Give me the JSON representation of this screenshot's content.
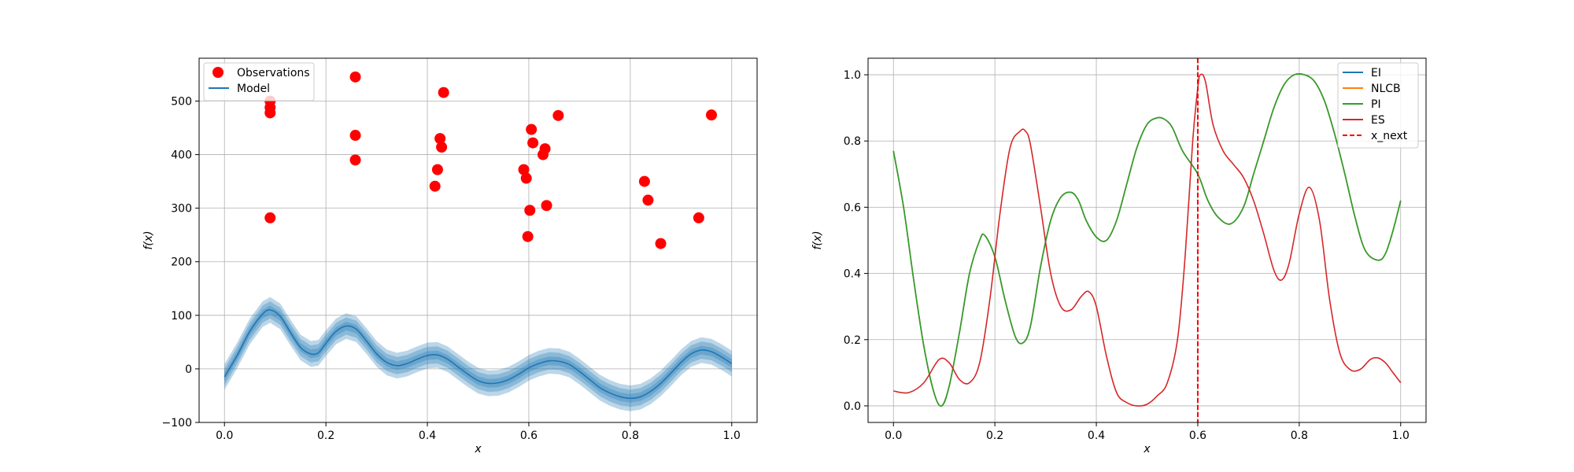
{
  "chart_data": [
    {
      "type": "scatter",
      "xlabel": "x",
      "ylabel": "f(x)",
      "xlim": [
        -0.05,
        1.05
      ],
      "ylim": [
        -100,
        580
      ],
      "xticks": [
        0.0,
        0.2,
        0.4,
        0.6,
        0.8,
        1.0
      ],
      "xtick_labels": [
        "0.0",
        "0.2",
        "0.4",
        "0.6",
        "0.8",
        "1.0"
      ],
      "yticks": [
        -100,
        0,
        100,
        200,
        300,
        400,
        500
      ],
      "ytick_labels": [
        "−100",
        "0",
        "100",
        "200",
        "300",
        "400",
        "500"
      ],
      "grid": true,
      "legend": "top-left",
      "series": [
        {
          "name": "Observations",
          "kind": "points",
          "color": "#ff0000",
          "x": [
            0.09,
            0.09,
            0.09,
            0.09,
            0.258,
            0.258,
            0.258,
            0.415,
            0.42,
            0.425,
            0.428,
            0.432,
            0.59,
            0.595,
            0.598,
            0.602,
            0.605,
            0.608,
            0.628,
            0.632,
            0.635,
            0.658,
            0.828,
            0.835,
            0.86,
            0.935,
            0.96
          ],
          "y": [
            500,
            488,
            478,
            282,
            545,
            436,
            390,
            341,
            372,
            430,
            414,
            516,
            372,
            356,
            247,
            296,
            447,
            422,
            400,
            411,
            305,
            473,
            350,
            315,
            234,
            282,
            474
          ]
        },
        {
          "name": "Model",
          "kind": "line",
          "color": "#1f77b4",
          "x": [
            0.0,
            0.025,
            0.05,
            0.075,
            0.09,
            0.11,
            0.13,
            0.15,
            0.17,
            0.185,
            0.2,
            0.22,
            0.24,
            0.26,
            0.28,
            0.3,
            0.32,
            0.34,
            0.36,
            0.38,
            0.4,
            0.42,
            0.44,
            0.46,
            0.48,
            0.5,
            0.52,
            0.54,
            0.56,
            0.58,
            0.6,
            0.62,
            0.64,
            0.66,
            0.68,
            0.7,
            0.72,
            0.74,
            0.76,
            0.78,
            0.8,
            0.82,
            0.84,
            0.86,
            0.88,
            0.9,
            0.92,
            0.94,
            0.96,
            0.98,
            1.0
          ],
          "y": [
            -15,
            25,
            70,
            102,
            110,
            98,
            68,
            40,
            28,
            30,
            48,
            70,
            80,
            74,
            52,
            28,
            12,
            6,
            10,
            18,
            25,
            26,
            18,
            4,
            -10,
            -22,
            -27,
            -26,
            -20,
            -10,
            2,
            10,
            15,
            14,
            8,
            -5,
            -20,
            -35,
            -45,
            -52,
            -55,
            -52,
            -42,
            -27,
            -8,
            12,
            28,
            35,
            32,
            22,
            10
          ],
          "band_halfwidths": [
            8,
            16,
            24
          ]
        }
      ]
    },
    {
      "type": "line",
      "xlabel": "x",
      "ylabel": "f(x)",
      "xlim": [
        -0.05,
        1.05
      ],
      "ylim": [
        -0.05,
        1.05
      ],
      "xticks": [
        0.0,
        0.2,
        0.4,
        0.6,
        0.8,
        1.0
      ],
      "xtick_labels": [
        "0.0",
        "0.2",
        "0.4",
        "0.6",
        "0.8",
        "1.0"
      ],
      "yticks": [
        0.0,
        0.2,
        0.4,
        0.6,
        0.8,
        1.0
      ],
      "ytick_labels": [
        "0.0",
        "0.2",
        "0.4",
        "0.6",
        "0.8",
        "1.0"
      ],
      "grid": true,
      "legend": "top-right",
      "vline": {
        "name": "x_next",
        "x": 0.6,
        "color": "#ff0000",
        "dashed": true
      },
      "series": [
        {
          "name": "EI",
          "color": "#1f77b4",
          "hidden_under": "NLCB",
          "x": [
            0.0,
            0.02,
            0.04,
            0.06,
            0.08,
            0.095,
            0.11,
            0.13,
            0.15,
            0.17,
            0.18,
            0.2,
            0.22,
            0.24,
            0.255,
            0.27,
            0.29,
            0.31,
            0.33,
            0.35,
            0.365,
            0.38,
            0.4,
            0.42,
            0.44,
            0.46,
            0.48,
            0.5,
            0.52,
            0.535,
            0.55,
            0.57,
            0.6,
            0.62,
            0.64,
            0.665,
            0.69,
            0.71,
            0.73,
            0.75,
            0.77,
            0.79,
            0.81,
            0.83,
            0.85,
            0.87,
            0.89,
            0.91,
            0.93,
            0.955,
            0.97,
            0.985,
            1.0
          ],
          "y": [
            0.77,
            0.6,
            0.38,
            0.18,
            0.04,
            0.0,
            0.06,
            0.22,
            0.4,
            0.5,
            0.515,
            0.45,
            0.32,
            0.21,
            0.19,
            0.24,
            0.42,
            0.56,
            0.63,
            0.645,
            0.62,
            0.56,
            0.51,
            0.5,
            0.56,
            0.67,
            0.78,
            0.85,
            0.87,
            0.865,
            0.84,
            0.77,
            0.7,
            0.62,
            0.57,
            0.55,
            0.6,
            0.7,
            0.8,
            0.9,
            0.97,
            1.0,
            1.0,
            0.98,
            0.92,
            0.82,
            0.7,
            0.57,
            0.47,
            0.44,
            0.46,
            0.53,
            0.62
          ]
        },
        {
          "name": "NLCB",
          "color": "#ff7f0e",
          "x": [
            0.0,
            0.02,
            0.04,
            0.06,
            0.08,
            0.095,
            0.11,
            0.13,
            0.15,
            0.17,
            0.18,
            0.2,
            0.22,
            0.24,
            0.255,
            0.27,
            0.29,
            0.31,
            0.33,
            0.35,
            0.365,
            0.38,
            0.4,
            0.42,
            0.44,
            0.46,
            0.48,
            0.5,
            0.52,
            0.535,
            0.55,
            0.57,
            0.6,
            0.62,
            0.64,
            0.665,
            0.69,
            0.71,
            0.73,
            0.75,
            0.77,
            0.79,
            0.81,
            0.83,
            0.85,
            0.87,
            0.89,
            0.91,
            0.93,
            0.955,
            0.97,
            0.985,
            1.0
          ],
          "y": [
            0.77,
            0.6,
            0.38,
            0.18,
            0.04,
            0.0,
            0.06,
            0.22,
            0.4,
            0.5,
            0.515,
            0.45,
            0.32,
            0.21,
            0.19,
            0.24,
            0.42,
            0.56,
            0.63,
            0.645,
            0.62,
            0.56,
            0.51,
            0.5,
            0.56,
            0.67,
            0.78,
            0.85,
            0.87,
            0.865,
            0.84,
            0.77,
            0.7,
            0.62,
            0.57,
            0.55,
            0.6,
            0.7,
            0.8,
            0.9,
            0.97,
            1.0,
            1.0,
            0.98,
            0.92,
            0.82,
            0.7,
            0.57,
            0.47,
            0.44,
            0.46,
            0.53,
            0.62
          ]
        },
        {
          "name": "PI",
          "color": "#2ca02c",
          "hidden_under": "NLCB",
          "x": [
            0.0,
            0.02,
            0.04,
            0.06,
            0.08,
            0.095,
            0.11,
            0.13,
            0.15,
            0.17,
            0.18,
            0.2,
            0.22,
            0.24,
            0.255,
            0.27,
            0.29,
            0.31,
            0.33,
            0.35,
            0.365,
            0.38,
            0.4,
            0.42,
            0.44,
            0.46,
            0.48,
            0.5,
            0.52,
            0.535,
            0.55,
            0.57,
            0.6,
            0.62,
            0.64,
            0.665,
            0.69,
            0.71,
            0.73,
            0.75,
            0.77,
            0.79,
            0.81,
            0.83,
            0.85,
            0.87,
            0.89,
            0.91,
            0.93,
            0.955,
            0.97,
            0.985,
            1.0
          ],
          "y": [
            0.77,
            0.6,
            0.38,
            0.18,
            0.04,
            0.0,
            0.06,
            0.22,
            0.4,
            0.5,
            0.515,
            0.45,
            0.32,
            0.21,
            0.19,
            0.24,
            0.42,
            0.56,
            0.63,
            0.645,
            0.62,
            0.56,
            0.51,
            0.5,
            0.56,
            0.67,
            0.78,
            0.85,
            0.87,
            0.865,
            0.84,
            0.77,
            0.7,
            0.62,
            0.57,
            0.55,
            0.6,
            0.7,
            0.8,
            0.9,
            0.97,
            1.0,
            1.0,
            0.98,
            0.92,
            0.82,
            0.7,
            0.57,
            0.47,
            0.44,
            0.46,
            0.53,
            0.62
          ]
        },
        {
          "name": "ES",
          "color": "#d62728",
          "x": [
            0.0,
            0.03,
            0.06,
            0.09,
            0.11,
            0.13,
            0.15,
            0.17,
            0.19,
            0.21,
            0.23,
            0.25,
            0.26,
            0.27,
            0.29,
            0.31,
            0.33,
            0.35,
            0.37,
            0.385,
            0.4,
            0.42,
            0.44,
            0.46,
            0.48,
            0.5,
            0.52,
            0.54,
            0.56,
            0.575,
            0.59,
            0.6,
            0.605,
            0.615,
            0.63,
            0.65,
            0.67,
            0.69,
            0.71,
            0.73,
            0.75,
            0.765,
            0.78,
            0.8,
            0.82,
            0.84,
            0.86,
            0.88,
            0.9,
            0.92,
            0.94,
            0.955,
            0.97,
            0.985,
            1.0
          ],
          "y": [
            0.045,
            0.04,
            0.07,
            0.14,
            0.13,
            0.08,
            0.07,
            0.13,
            0.32,
            0.58,
            0.78,
            0.83,
            0.83,
            0.79,
            0.6,
            0.4,
            0.3,
            0.29,
            0.33,
            0.345,
            0.3,
            0.15,
            0.04,
            0.01,
            0.0,
            0.005,
            0.03,
            0.07,
            0.2,
            0.45,
            0.8,
            0.96,
            1.0,
            0.98,
            0.85,
            0.77,
            0.73,
            0.69,
            0.62,
            0.52,
            0.41,
            0.38,
            0.43,
            0.58,
            0.66,
            0.56,
            0.32,
            0.16,
            0.11,
            0.11,
            0.14,
            0.145,
            0.13,
            0.1,
            0.07
          ]
        }
      ]
    }
  ]
}
